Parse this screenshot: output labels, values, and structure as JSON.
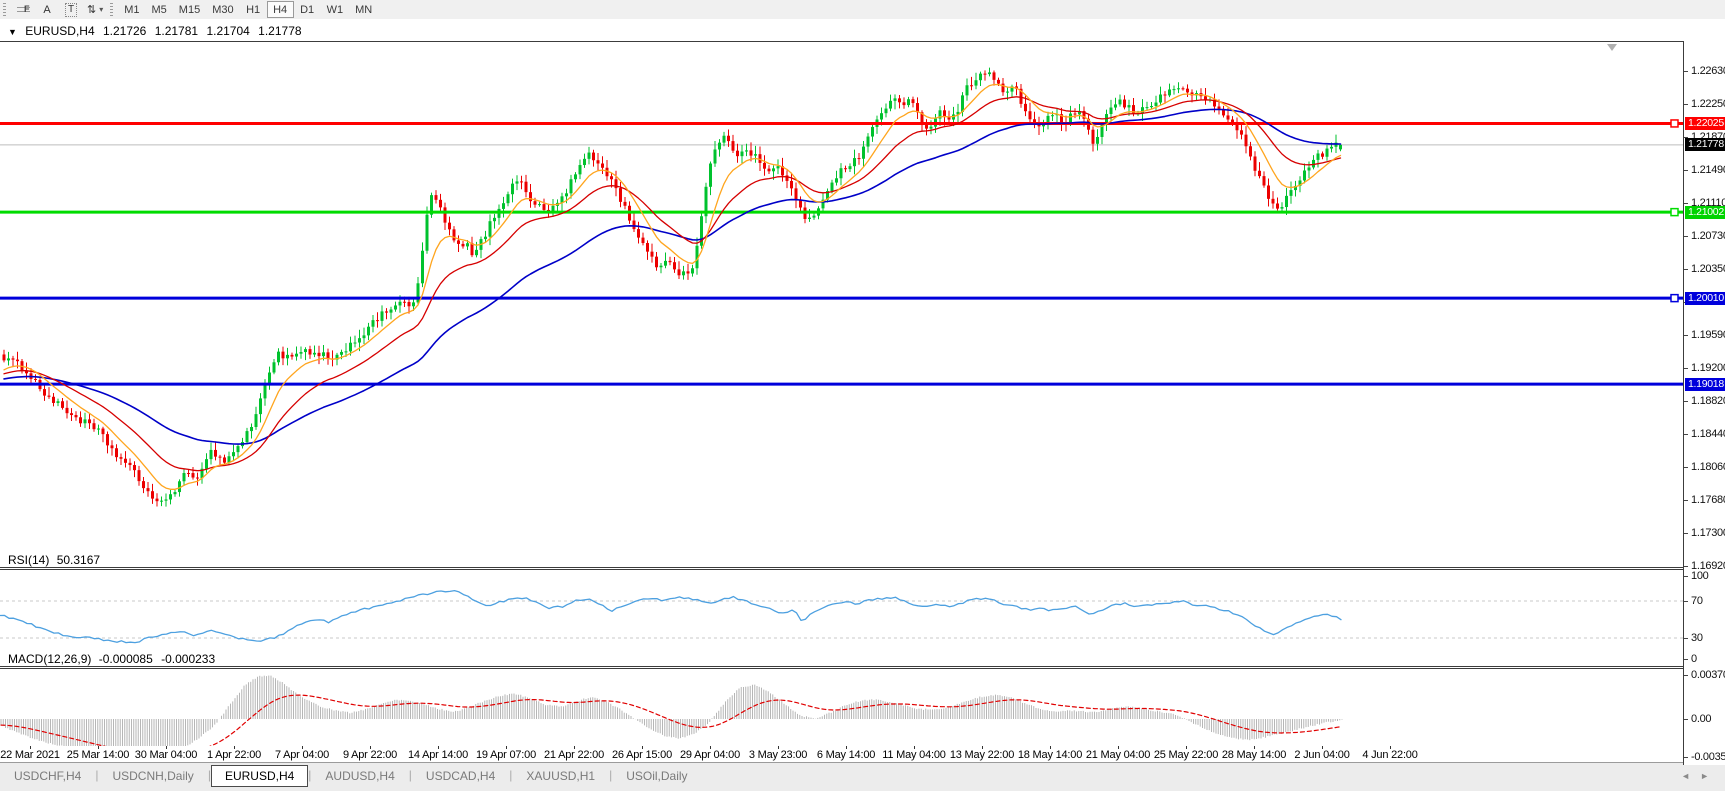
{
  "toolbar": {
    "tools": [
      {
        "name": "fibonacci-tool",
        "glyph": "F"
      },
      {
        "name": "text-tool",
        "glyph": "A"
      },
      {
        "name": "label-tool",
        "glyph": "T"
      },
      {
        "name": "arrows-tool",
        "glyph": "⇅"
      }
    ],
    "dropdown_caret": "▾",
    "timeframes": [
      "M1",
      "M5",
      "M15",
      "M30",
      "H1",
      "H4",
      "D1",
      "W1",
      "MN"
    ],
    "active_timeframe": "H4"
  },
  "chart": {
    "symbol_caret": "▼",
    "title": "EURUSD,H4",
    "open": "1.21726",
    "high": "1.21781",
    "low": "1.21704",
    "close": "1.21778"
  },
  "rsi": {
    "label": "RSI(14)",
    "value": "50.3167",
    "axis": [
      "100",
      "70",
      "30",
      "0"
    ]
  },
  "macd": {
    "label": "MACD(12,26,9)",
    "value1": "-0.000085",
    "value2": "-0.000233",
    "axis": [
      "0.003701",
      "0.00",
      "-0.003572"
    ]
  },
  "price_axis": {
    "ticks": [
      "1.22630",
      "1.22250",
      "1.21870",
      "1.21490",
      "1.21110",
      "1.20730",
      "1.20350",
      "1.19970",
      "1.19590",
      "1.19200",
      "1.18820",
      "1.18440",
      "1.18060",
      "1.17680",
      "1.17300",
      "1.16920"
    ],
    "line_labels": [
      {
        "text": "1.22025",
        "color": "#ff0000",
        "type": "resistance"
      },
      {
        "text": "1.21778",
        "color": "#000000",
        "type": "current-price"
      },
      {
        "text": "1.21002",
        "color": "#00d300",
        "type": "support"
      },
      {
        "text": "1.20010",
        "color": "#0000dc",
        "type": "support"
      },
      {
        "text": "1.19018",
        "color": "#0000dc",
        "type": "support"
      }
    ]
  },
  "date_axis": {
    "labels": [
      "22 Mar 2021",
      "25 Mar 14:00",
      "30 Mar 04:00",
      "1 Apr 22:00",
      "7 Apr 04:00",
      "9 Apr 22:00",
      "14 Apr 14:00",
      "19 Apr 07:00",
      "21 Apr 22:00",
      "26 Apr 15:00",
      "29 Apr 04:00",
      "3 May 23:00",
      "6 May 14:00",
      "11 May 04:00",
      "13 May 22:00",
      "18 May 14:00",
      "21 May 04:00",
      "25 May 22:00",
      "28 May 14:00",
      "2 Jun 04:00",
      "4 Jun 22:00"
    ]
  },
  "tabs": {
    "items": [
      {
        "label": "USDCHF,H4",
        "active": false
      },
      {
        "label": "USDCNH,Daily",
        "active": false
      },
      {
        "label": "EURUSD,H4",
        "active": true
      },
      {
        "label": "AUDUSD,H4",
        "active": false
      },
      {
        "label": "USDCAD,H4",
        "active": false
      },
      {
        "label": "XAUUSD,H1",
        "active": false
      },
      {
        "label": "USOil,Daily",
        "active": false
      }
    ],
    "nav_left": "◄",
    "nav_right": "►"
  },
  "colors": {
    "candle_up": "#00c22e",
    "candle_down": "#ec0000",
    "ma_fast": "#ffa51e",
    "ma_mid": "#d60000",
    "ma_slow": "#0000c8",
    "rsi_line": "#4da0e0",
    "level_dash": "#c8c8c8",
    "macd_hist": "#b6b6b6",
    "macd_signal": "#e00000",
    "hline_red": "#ff0000",
    "hline_green": "#00dc00",
    "hline_blue": "#0000dc",
    "current_line": "#bebebe",
    "pane_border": "#3c3c3c"
  },
  "chart_data": {
    "type": "candlestick",
    "symbol": "EURUSD",
    "timeframe": "H4",
    "current_bar": {
      "open": 1.21726,
      "high": 1.21781,
      "low": 1.21704,
      "close": 1.21778
    },
    "indicators_current": {
      "rsi": 50.3167,
      "macd": -8.5e-05,
      "macd_signal": -0.000233
    },
    "y_axis_range": [
      1.16908,
      1.22976
    ],
    "rsi_levels": [
      70,
      30
    ],
    "macd_axis": {
      "top": 0.003701,
      "zero": 0.0,
      "bottom": -0.003572
    },
    "horizontal_lines": [
      {
        "price": 1.22025,
        "role": "resistance",
        "color": "#ff0000"
      },
      {
        "price": 1.21778,
        "role": "current-price",
        "color": "#bebebe"
      },
      {
        "price": 1.21002,
        "role": "support",
        "color": "#00dc00"
      },
      {
        "price": 1.2001,
        "role": "support",
        "color": "#0000dc"
      },
      {
        "price": 1.19018,
        "role": "support",
        "color": "#0000dc"
      }
    ],
    "price_path": [
      [
        0,
        1.1936
      ],
      [
        12,
        1.1927
      ],
      [
        25,
        1.192
      ],
      [
        40,
        1.1897
      ],
      [
        55,
        1.188
      ],
      [
        70,
        1.1868
      ],
      [
        85,
        1.1857
      ],
      [
        100,
        1.1845
      ],
      [
        115,
        1.1822
      ],
      [
        130,
        1.1805
      ],
      [
        142,
        1.1787
      ],
      [
        152,
        1.1772
      ],
      [
        160,
        1.1761
      ],
      [
        168,
        1.1772
      ],
      [
        176,
        1.1783
      ],
      [
        185,
        1.1797
      ],
      [
        195,
        1.1791
      ],
      [
        205,
        1.1815
      ],
      [
        213,
        1.1826
      ],
      [
        222,
        1.1812
      ],
      [
        232,
        1.1821
      ],
      [
        242,
        1.1836
      ],
      [
        252,
        1.1855
      ],
      [
        260,
        1.188
      ],
      [
        268,
        1.1915
      ],
      [
        278,
        1.1938
      ],
      [
        290,
        1.193
      ],
      [
        302,
        1.194
      ],
      [
        312,
        1.1934
      ],
      [
        322,
        1.1938
      ],
      [
        332,
        1.1925
      ],
      [
        344,
        1.1942
      ],
      [
        358,
        1.1955
      ],
      [
        372,
        1.197
      ],
      [
        386,
        1.1986
      ],
      [
        398,
        1.1997
      ],
      [
        408,
        1.199
      ],
      [
        416,
        1.2
      ],
      [
        422,
        1.2048
      ],
      [
        428,
        1.211
      ],
      [
        434,
        1.2121
      ],
      [
        442,
        1.2097
      ],
      [
        450,
        1.2076
      ],
      [
        457,
        1.2059
      ],
      [
        465,
        1.2067
      ],
      [
        472,
        1.2049
      ],
      [
        480,
        1.2063
      ],
      [
        490,
        1.2086
      ],
      [
        500,
        1.2108
      ],
      [
        510,
        1.2126
      ],
      [
        518,
        1.214
      ],
      [
        527,
        1.2122
      ],
      [
        537,
        1.2107
      ],
      [
        547,
        1.2101
      ],
      [
        557,
        1.211
      ],
      [
        567,
        1.2126
      ],
      [
        577,
        1.2148
      ],
      [
        587,
        1.2166
      ],
      [
        597,
        1.2159
      ],
      [
        607,
        1.2145
      ],
      [
        617,
        1.2125
      ],
      [
        627,
        1.2099
      ],
      [
        637,
        1.2076
      ],
      [
        647,
        1.2053
      ],
      [
        656,
        1.2038
      ],
      [
        666,
        1.2046
      ],
      [
        676,
        1.2033
      ],
      [
        686,
        1.2029
      ],
      [
        694,
        1.204
      ],
      [
        701,
        1.209
      ],
      [
        707,
        1.2136
      ],
      [
        714,
        1.2172
      ],
      [
        721,
        1.2187
      ],
      [
        729,
        1.2179
      ],
      [
        738,
        1.2168
      ],
      [
        747,
        1.2175
      ],
      [
        757,
        1.2162
      ],
      [
        767,
        1.2145
      ],
      [
        777,
        1.2152
      ],
      [
        787,
        1.2139
      ],
      [
        797,
        1.211
      ],
      [
        807,
        1.2087
      ],
      [
        817,
        1.2103
      ],
      [
        827,
        1.2126
      ],
      [
        837,
        1.2144
      ],
      [
        847,
        1.2152
      ],
      [
        857,
        1.2161
      ],
      [
        867,
        1.2184
      ],
      [
        877,
        1.2206
      ],
      [
        887,
        1.2223
      ],
      [
        895,
        1.2235
      ],
      [
        902,
        1.222
      ],
      [
        910,
        1.2228
      ],
      [
        918,
        1.2213
      ],
      [
        926,
        1.2197
      ],
      [
        934,
        1.2207
      ],
      [
        942,
        1.2217
      ],
      [
        950,
        1.2207
      ],
      [
        958,
        1.222
      ],
      [
        966,
        1.2241
      ],
      [
        974,
        1.2254
      ],
      [
        982,
        1.2263
      ],
      [
        990,
        1.2258
      ],
      [
        998,
        1.2247
      ],
      [
        1006,
        1.2237
      ],
      [
        1014,
        1.2244
      ],
      [
        1022,
        1.2225
      ],
      [
        1030,
        1.2208
      ],
      [
        1038,
        1.2198
      ],
      [
        1046,
        1.2207
      ],
      [
        1054,
        1.2213
      ],
      [
        1062,
        1.2202
      ],
      [
        1070,
        1.2209
      ],
      [
        1078,
        1.2218
      ],
      [
        1086,
        1.2199
      ],
      [
        1093,
        1.2176
      ],
      [
        1100,
        1.2198
      ],
      [
        1108,
        1.2215
      ],
      [
        1118,
        1.2228
      ],
      [
        1128,
        1.222
      ],
      [
        1138,
        1.2214
      ],
      [
        1148,
        1.2224
      ],
      [
        1158,
        1.2231
      ],
      [
        1170,
        1.224
      ],
      [
        1181,
        1.2247
      ],
      [
        1192,
        1.2232
      ],
      [
        1203,
        1.2237
      ],
      [
        1213,
        1.2221
      ],
      [
        1223,
        1.2214
      ],
      [
        1233,
        1.2202
      ],
      [
        1243,
        1.2186
      ],
      [
        1253,
        1.2157
      ],
      [
        1263,
        1.213
      ],
      [
        1273,
        1.2108
      ],
      [
        1280,
        1.2102
      ],
      [
        1288,
        1.212
      ],
      [
        1297,
        1.2137
      ],
      [
        1306,
        1.2148
      ],
      [
        1316,
        1.2162
      ],
      [
        1326,
        1.2172
      ],
      [
        1334,
        1.2176
      ],
      [
        1342,
        1.21778
      ]
    ],
    "rsi_path": [
      [
        0,
        55
      ],
      [
        25,
        47
      ],
      [
        50,
        37
      ],
      [
        70,
        31
      ],
      [
        90,
        30
      ],
      [
        110,
        27
      ],
      [
        135,
        25
      ],
      [
        150,
        31
      ],
      [
        163,
        34
      ],
      [
        178,
        37
      ],
      [
        195,
        33
      ],
      [
        210,
        38
      ],
      [
        225,
        34
      ],
      [
        245,
        28
      ],
      [
        262,
        26
      ],
      [
        280,
        33
      ],
      [
        298,
        43
      ],
      [
        315,
        50
      ],
      [
        330,
        47
      ],
      [
        345,
        55
      ],
      [
        360,
        60
      ],
      [
        375,
        64
      ],
      [
        390,
        68
      ],
      [
        405,
        72
      ],
      [
        420,
        76
      ],
      [
        435,
        80
      ],
      [
        450,
        81
      ],
      [
        462,
        79
      ],
      [
        475,
        71
      ],
      [
        488,
        65
      ],
      [
        500,
        69
      ],
      [
        512,
        72
      ],
      [
        525,
        73
      ],
      [
        538,
        67
      ],
      [
        550,
        62
      ],
      [
        562,
        64
      ],
      [
        575,
        70
      ],
      [
        588,
        72
      ],
      [
        600,
        66
      ],
      [
        612,
        60
      ],
      [
        625,
        64
      ],
      [
        638,
        70
      ],
      [
        650,
        73
      ],
      [
        662,
        71
      ],
      [
        674,
        73
      ],
      [
        686,
        74
      ],
      [
        698,
        71
      ],
      [
        710,
        67
      ],
      [
        722,
        72
      ],
      [
        734,
        74
      ],
      [
        746,
        70
      ],
      [
        758,
        66
      ],
      [
        770,
        61
      ],
      [
        782,
        57
      ],
      [
        794,
        60
      ],
      [
        803,
        46
      ],
      [
        812,
        58
      ],
      [
        822,
        63
      ],
      [
        832,
        66
      ],
      [
        845,
        69
      ],
      [
        858,
        67
      ],
      [
        870,
        71
      ],
      [
        882,
        73
      ],
      [
        895,
        74
      ],
      [
        908,
        68
      ],
      [
        920,
        63
      ],
      [
        932,
        66
      ],
      [
        944,
        64
      ],
      [
        956,
        66
      ],
      [
        968,
        70
      ],
      [
        980,
        73
      ],
      [
        992,
        71
      ],
      [
        1004,
        67
      ],
      [
        1016,
        64
      ],
      [
        1028,
        60
      ],
      [
        1040,
        62
      ],
      [
        1052,
        60
      ],
      [
        1064,
        62
      ],
      [
        1076,
        64
      ],
      [
        1088,
        55
      ],
      [
        1100,
        60
      ],
      [
        1112,
        65
      ],
      [
        1124,
        68
      ],
      [
        1136,
        63
      ],
      [
        1148,
        65
      ],
      [
        1160,
        67
      ],
      [
        1172,
        69
      ],
      [
        1183,
        70
      ],
      [
        1195,
        64
      ],
      [
        1207,
        66
      ],
      [
        1219,
        61
      ],
      [
        1231,
        58
      ],
      [
        1243,
        53
      ],
      [
        1255,
        44
      ],
      [
        1265,
        37
      ],
      [
        1275,
        33
      ],
      [
        1285,
        40
      ],
      [
        1295,
        46
      ],
      [
        1305,
        50
      ],
      [
        1315,
        53
      ],
      [
        1325,
        55
      ],
      [
        1334,
        53
      ],
      [
        1342,
        50.3
      ]
    ],
    "macd_path": [
      [
        0,
        -0.0005
      ],
      [
        20,
        -0.0012
      ],
      [
        40,
        -0.0018
      ],
      [
        60,
        -0.0022
      ],
      [
        80,
        -0.0026
      ],
      [
        100,
        -0.003
      ],
      [
        120,
        -0.0032
      ],
      [
        140,
        -0.0033
      ],
      [
        160,
        -0.0031
      ],
      [
        180,
        -0.0026
      ],
      [
        200,
        -0.0015
      ],
      [
        215,
        -0.0005
      ],
      [
        230,
        0.0012
      ],
      [
        245,
        0.0028
      ],
      [
        258,
        0.0035
      ],
      [
        270,
        0.0036
      ],
      [
        282,
        0.003
      ],
      [
        295,
        0.0022
      ],
      [
        308,
        0.0015
      ],
      [
        322,
        0.001
      ],
      [
        336,
        0.0007
      ],
      [
        350,
        0.0005
      ],
      [
        365,
        0.0008
      ],
      [
        380,
        0.0012
      ],
      [
        395,
        0.0016
      ],
      [
        410,
        0.0015
      ],
      [
        425,
        0.0012
      ],
      [
        440,
        0.0008
      ],
      [
        455,
        0.0006
      ],
      [
        470,
        0.001
      ],
      [
        485,
        0.0015
      ],
      [
        500,
        0.0019
      ],
      [
        515,
        0.0021
      ],
      [
        530,
        0.0017
      ],
      [
        545,
        0.0012
      ],
      [
        560,
        0.001
      ],
      [
        575,
        0.0014
      ],
      [
        590,
        0.0018
      ],
      [
        605,
        0.0015
      ],
      [
        620,
        0.0008
      ],
      [
        635,
        0.0
      ],
      [
        650,
        -0.0008
      ],
      [
        665,
        -0.0014
      ],
      [
        680,
        -0.0016
      ],
      [
        695,
        -0.0012
      ],
      [
        710,
        -0.0002
      ],
      [
        725,
        0.0014
      ],
      [
        740,
        0.0026
      ],
      [
        755,
        0.0028
      ],
      [
        770,
        0.0022
      ],
      [
        785,
        0.0012
      ],
      [
        800,
        0.0003
      ],
      [
        815,
        0.0
      ],
      [
        830,
        0.0005
      ],
      [
        845,
        0.0011
      ],
      [
        860,
        0.0015
      ],
      [
        875,
        0.0016
      ],
      [
        890,
        0.0014
      ],
      [
        905,
        0.0011
      ],
      [
        920,
        0.0008
      ],
      [
        935,
        0.0008
      ],
      [
        950,
        0.001
      ],
      [
        965,
        0.0014
      ],
      [
        980,
        0.0018
      ],
      [
        995,
        0.002
      ],
      [
        1010,
        0.0018
      ],
      [
        1025,
        0.0013
      ],
      [
        1040,
        0.0008
      ],
      [
        1055,
        0.0006
      ],
      [
        1070,
        0.0007
      ],
      [
        1085,
        0.0006
      ],
      [
        1100,
        0.0006
      ],
      [
        1115,
        0.0009
      ],
      [
        1130,
        0.001
      ],
      [
        1145,
        0.0008
      ],
      [
        1160,
        0.0006
      ],
      [
        1175,
        0.0004
      ],
      [
        1190,
        -0.0002
      ],
      [
        1205,
        -0.0008
      ],
      [
        1220,
        -0.0013
      ],
      [
        1235,
        -0.0016
      ],
      [
        1250,
        -0.0017
      ],
      [
        1265,
        -0.0015
      ],
      [
        1280,
        -0.0012
      ],
      [
        1295,
        -0.0009
      ],
      [
        1310,
        -0.0006
      ],
      [
        1325,
        -0.0003
      ],
      [
        1342,
        -0.0001
      ]
    ]
  }
}
